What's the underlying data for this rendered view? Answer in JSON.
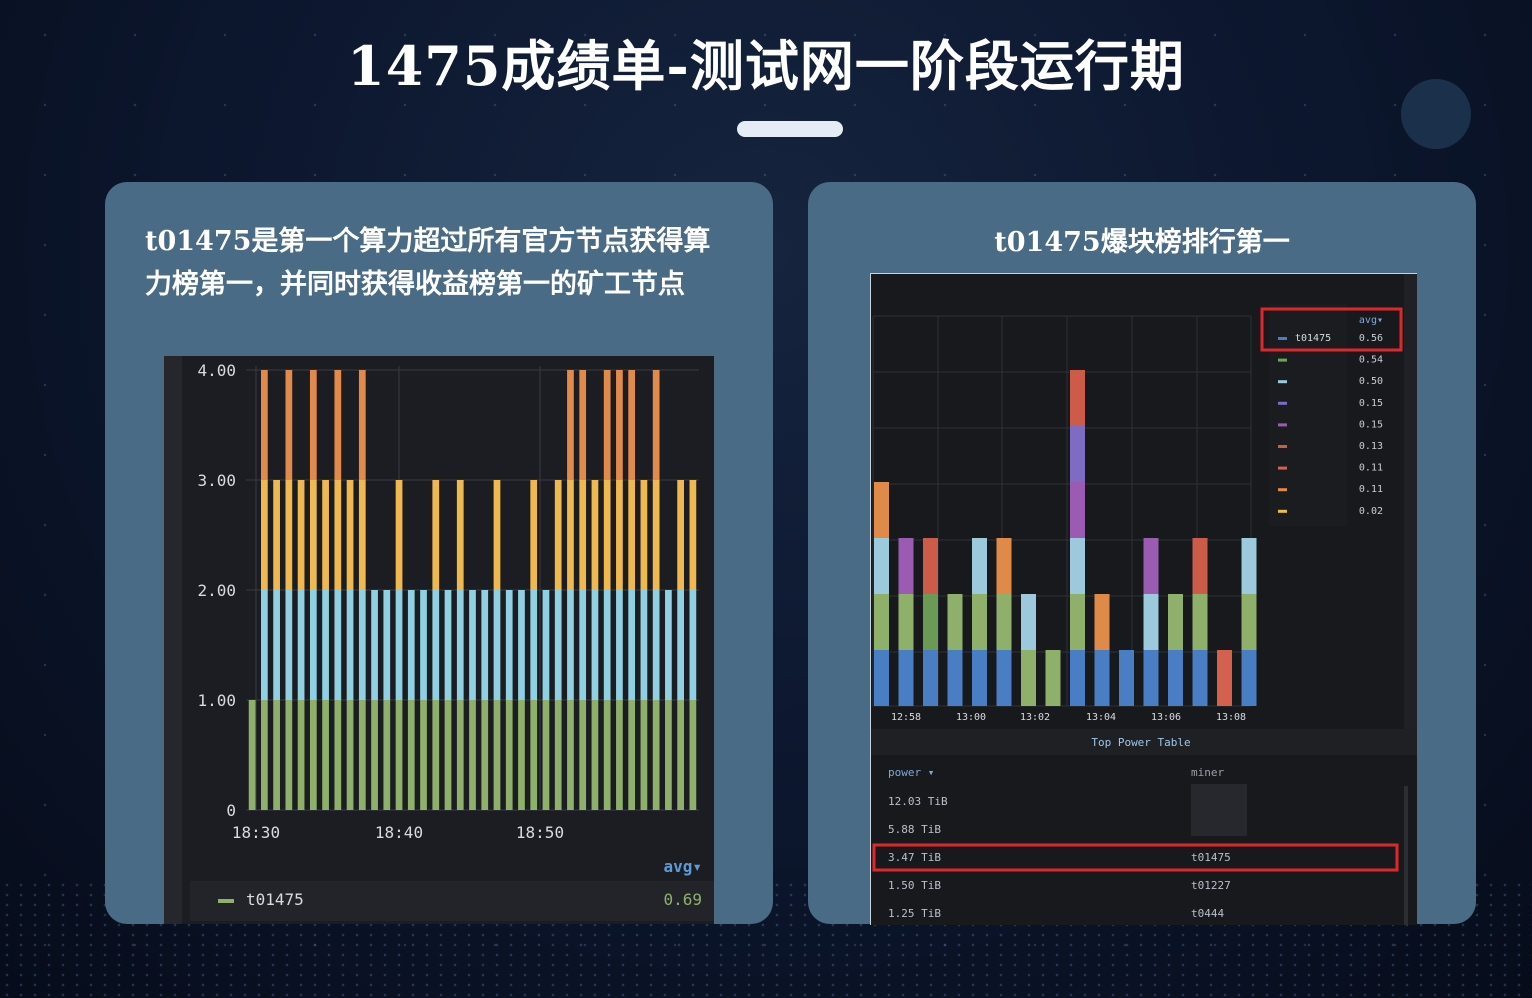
{
  "page": {
    "title": "1475成绩单-测试网一阶段运行期",
    "left_card": {
      "description": "t01475是第一个算力超过所有官方节点获得算力榜第一，并同时获得收益榜第一的矿工节点"
    },
    "right_card": {
      "description": "t01475爆块榜排行第一"
    }
  },
  "chart_data": [
    {
      "type": "bar",
      "stacked": true,
      "ylim": [
        0,
        4
      ],
      "y_ticks": [
        "0",
        "1.00",
        "2.00",
        "3.00",
        "4.00"
      ],
      "x_ticks": [
        "18:30",
        "18:40",
        "18:50"
      ],
      "grid": true,
      "legend_placement": "bottom",
      "legend_header": "avg",
      "legend": [
        {
          "name": "t01475",
          "value": "0.69",
          "color": "#8fb06a"
        }
      ],
      "colors": [
        "#8fb06a",
        "#8fd0e3",
        "#efb950",
        "#e28a4c"
      ],
      "columns": [
        [
          0,
          1,
          0,
          0,
          0
        ],
        [
          0,
          4,
          0,
          1,
          3
        ],
        [
          0,
          3,
          0,
          0,
          0
        ],
        [
          0,
          4,
          0,
          0,
          0
        ],
        [
          0,
          3,
          0,
          0,
          0
        ],
        [
          0,
          4,
          0,
          0,
          0
        ],
        [
          0,
          3,
          0,
          0,
          0
        ],
        [
          0,
          4,
          0,
          0,
          0
        ],
        [
          0,
          3,
          0,
          0,
          0
        ],
        [
          0,
          4,
          0,
          0,
          0
        ],
        [
          0,
          3,
          0,
          0,
          0
        ],
        [
          0,
          2,
          0,
          0,
          0
        ],
        [
          0,
          3,
          0,
          0,
          0
        ],
        [
          0,
          2,
          0,
          0,
          0
        ],
        [
          0,
          2,
          0,
          0,
          0
        ],
        [
          0,
          3,
          0,
          0,
          0
        ],
        [
          0,
          2,
          0,
          0,
          0
        ],
        [
          0,
          3,
          0,
          0,
          0
        ],
        [
          0,
          2,
          0,
          0,
          0
        ],
        [
          0,
          2,
          0,
          0,
          0
        ],
        [
          0,
          3,
          0,
          0,
          0
        ],
        [
          0,
          2,
          0,
          0,
          0
        ],
        [
          0,
          2,
          0,
          0,
          0
        ],
        [
          0,
          3,
          0,
          0,
          0
        ],
        [
          0,
          2,
          0,
          0,
          0
        ],
        [
          0,
          3,
          0,
          0,
          0
        ],
        [
          0,
          4,
          0,
          0,
          0
        ],
        [
          0,
          4,
          0,
          0,
          0
        ],
        [
          0,
          3,
          0,
          0,
          0
        ],
        [
          0,
          4,
          0,
          0,
          0
        ],
        [
          0,
          4,
          0,
          0,
          0
        ],
        [
          0,
          4,
          0,
          0,
          0
        ],
        [
          0,
          3,
          0,
          0,
          0
        ],
        [
          0,
          4,
          0,
          0,
          0
        ],
        [
          0,
          2,
          0,
          0,
          0
        ],
        [
          0,
          3,
          0,
          0,
          0
        ],
        [
          0,
          3,
          0,
          0,
          0
        ]
      ],
      "stacks": [
        [
          1,
          0,
          0,
          0
        ],
        [
          1,
          1,
          1,
          1
        ],
        [
          1,
          1,
          1,
          0
        ],
        [
          1,
          1,
          1,
          1
        ],
        [
          1,
          1,
          1,
          0
        ],
        [
          1,
          1,
          1,
          1
        ],
        [
          1,
          1,
          1,
          0
        ],
        [
          1,
          1,
          1,
          1
        ],
        [
          1,
          1,
          1,
          0
        ],
        [
          1,
          1,
          1,
          1
        ],
        [
          1,
          1,
          0,
          0
        ],
        [
          1,
          1,
          0,
          0
        ],
        [
          1,
          1,
          1,
          0
        ],
        [
          1,
          1,
          0,
          0
        ],
        [
          1,
          1,
          0,
          0
        ],
        [
          1,
          1,
          1,
          0
        ],
        [
          1,
          1,
          0,
          0
        ],
        [
          1,
          1,
          1,
          0
        ],
        [
          1,
          1,
          0,
          0
        ],
        [
          1,
          1,
          0,
          0
        ],
        [
          1,
          1,
          1,
          0
        ],
        [
          1,
          1,
          0,
          0
        ],
        [
          1,
          1,
          0,
          0
        ],
        [
          1,
          1,
          1,
          0
        ],
        [
          1,
          1,
          0,
          0
        ],
        [
          1,
          1,
          1,
          0
        ],
        [
          1,
          1,
          1,
          1
        ],
        [
          1,
          1,
          1,
          1
        ],
        [
          1,
          1,
          1,
          0
        ],
        [
          1,
          1,
          1,
          1
        ],
        [
          1,
          1,
          1,
          1
        ],
        [
          1,
          1,
          1,
          1
        ],
        [
          1,
          1,
          1,
          0
        ],
        [
          1,
          1,
          1,
          1
        ],
        [
          1,
          1,
          0,
          0
        ],
        [
          1,
          1,
          1,
          0
        ],
        [
          1,
          1,
          1,
          0
        ]
      ]
    },
    {
      "type": "bar",
      "stacked": true,
      "x_ticks": [
        "12:58",
        "13:00",
        "13:02",
        "13:04",
        "13:06",
        "13:08"
      ],
      "grid": true,
      "legend_placement": "right",
      "legend_header": "avg",
      "legend": [
        {
          "name": "t01475",
          "value": "0.56",
          "color": "#4a7ec4"
        },
        {
          "name": "",
          "value": "0.54",
          "color": "#6aa84f"
        },
        {
          "name": "",
          "value": "0.50",
          "color": "#9cc9dc"
        },
        {
          "name": "",
          "value": "0.15",
          "color": "#7e6cc2"
        },
        {
          "name": "",
          "value": "0.15",
          "color": "#9b5bb3"
        },
        {
          "name": "",
          "value": "0.13",
          "color": "#cc5b4a"
        },
        {
          "name": "",
          "value": "0.11",
          "color": "#d4604e"
        },
        {
          "name": "",
          "value": "0.11",
          "color": "#e08a49"
        },
        {
          "name": "",
          "value": "0.02",
          "color": "#e6c04a"
        }
      ],
      "stacks": [
        [
          [
            "#4a7ec4",
            1
          ],
          [
            "#8fb06a",
            1
          ],
          [
            "#9cc9dc",
            1
          ],
          [
            "#e08a49",
            1
          ]
        ],
        [
          [
            "#4a7ec4",
            1
          ],
          [
            "#8fb06a",
            1
          ],
          [
            "#9b5bb3",
            1
          ]
        ],
        [
          [
            "#4a7ec4",
            1
          ],
          [
            "#6a9a54",
            1
          ],
          [
            "#cc5b4a",
            1
          ]
        ],
        [
          [
            "#4a7ec4",
            1
          ],
          [
            "#8fb06a",
            1
          ]
        ],
        [
          [
            "#4a7ec4",
            1
          ],
          [
            "#8fb06a",
            1
          ],
          [
            "#9cc9dc",
            1
          ]
        ],
        [
          [
            "#4a7ec4",
            1
          ],
          [
            "#8fb06a",
            1
          ],
          [
            "#e08a49",
            1
          ]
        ],
        [
          [
            "#8fb06a",
            1
          ],
          [
            "#9cc9dc",
            1
          ]
        ],
        [
          [
            "#8fb06a",
            1
          ]
        ],
        [
          [
            "#4a7ec4",
            1
          ],
          [
            "#8fb06a",
            1
          ],
          [
            "#9cc9dc",
            1
          ],
          [
            "#9b5bb3",
            1
          ],
          [
            "#7e6cc2",
            1
          ],
          [
            "#cc5b4a",
            1
          ]
        ],
        [
          [
            "#4a7ec4",
            1
          ],
          [
            "#e08a49",
            1
          ]
        ],
        [
          [
            "#4a7ec4",
            1
          ]
        ],
        [
          [
            "#4a7ec4",
            1
          ],
          [
            "#9cc9dc",
            1
          ],
          [
            "#9b5bb3",
            1
          ]
        ],
        [
          [
            "#4a7ec4",
            1
          ],
          [
            "#8fb06a",
            1
          ]
        ],
        [
          [
            "#4a7ec4",
            1
          ],
          [
            "#8fb06a",
            1
          ],
          [
            "#cc5b4a",
            1
          ]
        ],
        [
          [
            "#d4604e",
            1
          ]
        ],
        [
          [
            "#4a7ec4",
            1
          ],
          [
            "#8fb06a",
            1
          ],
          [
            "#9cc9dc",
            1
          ]
        ]
      ]
    }
  ],
  "power_table": {
    "title": "Top Power Table",
    "columns": [
      "power",
      "miner"
    ],
    "rows": [
      {
        "power": "12.03 TiB",
        "miner": ""
      },
      {
        "power": "5.88 TiB",
        "miner": ""
      },
      {
        "power": "3.47 TiB",
        "miner": "t01475",
        "highlight": true
      },
      {
        "power": "1.50 TiB",
        "miner": "t01227"
      },
      {
        "power": "1.25 TiB",
        "miner": "t0444"
      }
    ]
  },
  "highlight_color": "#e0262a"
}
